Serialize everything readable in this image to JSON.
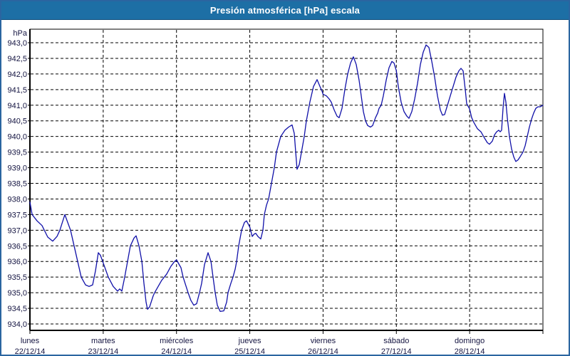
{
  "window": {
    "title": "Presión atmosférica [hPa] escala"
  },
  "chart_data": {
    "type": "line",
    "title": "Presión atmosférica [hPa] escala",
    "unit_label": "hPa",
    "grid": "on",
    "legend": "none",
    "colors": {
      "titlebar": "#1d6fa5",
      "frame": "#2a65a0",
      "line": "#1010a8",
      "grid": "#000000",
      "text": "#141441",
      "plot_background": "#ffffff"
    },
    "y_axis": {
      "min": 934.0,
      "max": 943.0,
      "step": 0.5,
      "tick_labels": [
        "943,0",
        "942,5",
        "942,0",
        "941,5",
        "941,0",
        "940,5",
        "940,0",
        "939,5",
        "939,0",
        "938,5",
        "938,0",
        "937,5",
        "937,0",
        "936,5",
        "936,0",
        "935,5",
        "935,0",
        "934,5",
        "934,0"
      ]
    },
    "x_axis": {
      "span_days": 7,
      "days": [
        {
          "name": "lunes",
          "date": "22/12/14"
        },
        {
          "name": "martes",
          "date": "23/12/14"
        },
        {
          "name": "miércoles",
          "date": "24/12/14"
        },
        {
          "name": "jueves",
          "date": "25/12/14"
        },
        {
          "name": "viernes",
          "date": "26/12/14"
        },
        {
          "name": "sábado",
          "date": "27/12/14"
        },
        {
          "name": "domingo",
          "date": "28/12/14"
        }
      ]
    },
    "series": [
      {
        "name": "Presión atmosférica [hPa]",
        "points": [
          [
            0.0,
            937.9
          ],
          [
            0.03,
            937.5
          ],
          [
            0.097,
            937.3
          ],
          [
            0.165,
            937.15
          ],
          [
            0.243,
            936.78
          ],
          [
            0.311,
            936.65
          ],
          [
            0.369,
            936.8
          ],
          [
            0.408,
            937.0
          ],
          [
            0.476,
            937.5
          ],
          [
            0.554,
            937.0
          ],
          [
            0.603,
            936.5
          ],
          [
            0.651,
            936.0
          ],
          [
            0.7,
            935.5
          ],
          [
            0.758,
            935.25
          ],
          [
            0.807,
            935.2
          ],
          [
            0.856,
            935.25
          ],
          [
            0.894,
            935.7
          ],
          [
            0.933,
            936.28
          ],
          [
            0.962,
            936.2
          ],
          [
            1.0,
            935.95
          ],
          [
            1.069,
            935.5
          ],
          [
            1.137,
            935.2
          ],
          [
            1.196,
            935.05
          ],
          [
            1.225,
            935.12
          ],
          [
            1.254,
            935.05
          ],
          [
            1.293,
            935.5
          ],
          [
            1.332,
            936.0
          ],
          [
            1.371,
            936.5
          ],
          [
            1.42,
            936.75
          ],
          [
            1.449,
            936.82
          ],
          [
            1.488,
            936.5
          ],
          [
            1.527,
            936.0
          ],
          [
            1.556,
            935.3
          ],
          [
            1.585,
            934.7
          ],
          [
            1.604,
            934.47
          ],
          [
            1.633,
            934.55
          ],
          [
            1.682,
            934.9
          ],
          [
            1.701,
            935.0
          ],
          [
            1.75,
            935.2
          ],
          [
            1.799,
            935.4
          ],
          [
            1.867,
            935.6
          ],
          [
            1.925,
            935.85
          ],
          [
            1.974,
            936.0
          ],
          [
            2.0,
            936.05
          ],
          [
            2.061,
            935.8
          ],
          [
            2.09,
            935.5
          ],
          [
            2.158,
            935.0
          ],
          [
            2.197,
            934.75
          ],
          [
            2.236,
            934.6
          ],
          [
            2.275,
            934.65
          ],
          [
            2.314,
            935.0
          ],
          [
            2.343,
            935.3
          ],
          [
            2.382,
            935.9
          ],
          [
            2.431,
            936.28
          ],
          [
            2.47,
            936.0
          ],
          [
            2.499,
            935.5
          ],
          [
            2.528,
            935.0
          ],
          [
            2.557,
            934.6
          ],
          [
            2.596,
            934.4
          ],
          [
            2.645,
            934.42
          ],
          [
            2.684,
            934.7
          ],
          [
            2.703,
            935.0
          ],
          [
            2.742,
            935.3
          ],
          [
            2.771,
            935.5
          ],
          [
            2.8,
            935.75
          ],
          [
            2.82,
            936.0
          ],
          [
            2.849,
            936.5
          ],
          [
            2.888,
            937.0
          ],
          [
            2.927,
            937.25
          ],
          [
            2.956,
            937.3
          ],
          [
            3.0,
            937.1
          ],
          [
            3.033,
            936.8
          ],
          [
            3.062,
            936.88
          ],
          [
            3.082,
            936.9
          ],
          [
            3.111,
            936.8
          ],
          [
            3.15,
            936.72
          ],
          [
            3.179,
            937.0
          ],
          [
            3.199,
            937.5
          ],
          [
            3.228,
            937.8
          ],
          [
            3.257,
            938.0
          ],
          [
            3.296,
            938.5
          ],
          [
            3.335,
            939.0
          ],
          [
            3.364,
            939.5
          ],
          [
            3.422,
            940.0
          ],
          [
            3.48,
            940.2
          ],
          [
            3.529,
            940.3
          ],
          [
            3.577,
            940.37
          ],
          [
            3.607,
            940.1
          ],
          [
            3.626,
            939.5
          ],
          [
            3.645,
            938.95
          ],
          [
            3.675,
            939.1
          ],
          [
            3.713,
            939.6
          ],
          [
            3.743,
            940.0
          ],
          [
            3.772,
            940.5
          ],
          [
            3.82,
            941.1
          ],
          [
            3.869,
            941.6
          ],
          [
            3.918,
            941.82
          ],
          [
            3.957,
            941.6
          ],
          [
            3.986,
            941.45
          ],
          [
            4.0,
            941.35
          ],
          [
            4.044,
            941.3
          ],
          [
            4.083,
            941.2
          ],
          [
            4.112,
            941.1
          ],
          [
            4.151,
            940.85
          ],
          [
            4.19,
            940.65
          ],
          [
            4.219,
            940.6
          ],
          [
            4.258,
            940.9
          ],
          [
            4.297,
            941.5
          ],
          [
            4.336,
            942.0
          ],
          [
            4.375,
            942.35
          ],
          [
            4.414,
            942.55
          ],
          [
            4.453,
            942.3
          ],
          [
            4.492,
            941.8
          ],
          [
            4.521,
            941.3
          ],
          [
            4.55,
            940.8
          ],
          [
            4.579,
            940.5
          ],
          [
            4.608,
            940.35
          ],
          [
            4.647,
            940.3
          ],
          [
            4.676,
            940.35
          ],
          [
            4.715,
            940.6
          ],
          [
            4.745,
            940.75
          ],
          [
            4.764,
            940.9
          ],
          [
            4.793,
            941.0
          ],
          [
            4.822,
            941.3
          ],
          [
            4.861,
            941.8
          ],
          [
            4.9,
            942.2
          ],
          [
            4.939,
            942.4
          ],
          [
            4.968,
            942.35
          ],
          [
            5.0,
            942.1
          ],
          [
            5.026,
            941.6
          ],
          [
            5.065,
            941.1
          ],
          [
            5.104,
            940.8
          ],
          [
            5.143,
            940.65
          ],
          [
            5.172,
            940.58
          ],
          [
            5.211,
            940.8
          ],
          [
            5.25,
            941.2
          ],
          [
            5.289,
            941.7
          ],
          [
            5.328,
            942.3
          ],
          [
            5.367,
            942.7
          ],
          [
            5.406,
            942.93
          ],
          [
            5.444,
            942.85
          ],
          [
            5.483,
            942.4
          ],
          [
            5.522,
            941.9
          ],
          [
            5.561,
            941.3
          ],
          [
            5.6,
            940.85
          ],
          [
            5.629,
            940.68
          ],
          [
            5.658,
            940.7
          ],
          [
            5.697,
            941.0
          ],
          [
            5.736,
            941.3
          ],
          [
            5.775,
            941.6
          ],
          [
            5.814,
            941.9
          ],
          [
            5.853,
            942.1
          ],
          [
            5.882,
            942.18
          ],
          [
            5.911,
            942.1
          ],
          [
            5.94,
            941.5
          ],
          [
            5.96,
            941.05
          ],
          [
            6.0,
            940.88
          ],
          [
            6.028,
            940.6
          ],
          [
            6.057,
            940.45
          ],
          [
            6.106,
            940.25
          ],
          [
            6.154,
            940.15
          ],
          [
            6.203,
            939.95
          ],
          [
            6.242,
            939.8
          ],
          [
            6.271,
            939.75
          ],
          [
            6.31,
            939.85
          ],
          [
            6.339,
            940.05
          ],
          [
            6.368,
            940.15
          ],
          [
            6.397,
            940.2
          ],
          [
            6.417,
            940.15
          ],
          [
            6.436,
            940.2
          ],
          [
            6.456,
            940.9
          ],
          [
            6.475,
            941.38
          ],
          [
            6.494,
            941.1
          ],
          [
            6.514,
            940.6
          ],
          [
            6.543,
            940.0
          ],
          [
            6.572,
            939.6
          ],
          [
            6.601,
            939.35
          ],
          [
            6.63,
            939.2
          ],
          [
            6.66,
            939.25
          ],
          [
            6.689,
            939.35
          ],
          [
            6.728,
            939.5
          ],
          [
            6.757,
            939.7
          ],
          [
            6.786,
            940.0
          ],
          [
            6.815,
            940.3
          ],
          [
            6.844,
            940.55
          ],
          [
            6.874,
            940.75
          ],
          [
            6.903,
            940.9
          ],
          [
            6.932,
            940.95
          ],
          [
            6.961,
            940.95
          ],
          [
            7.0,
            941.0
          ]
        ]
      }
    ]
  }
}
